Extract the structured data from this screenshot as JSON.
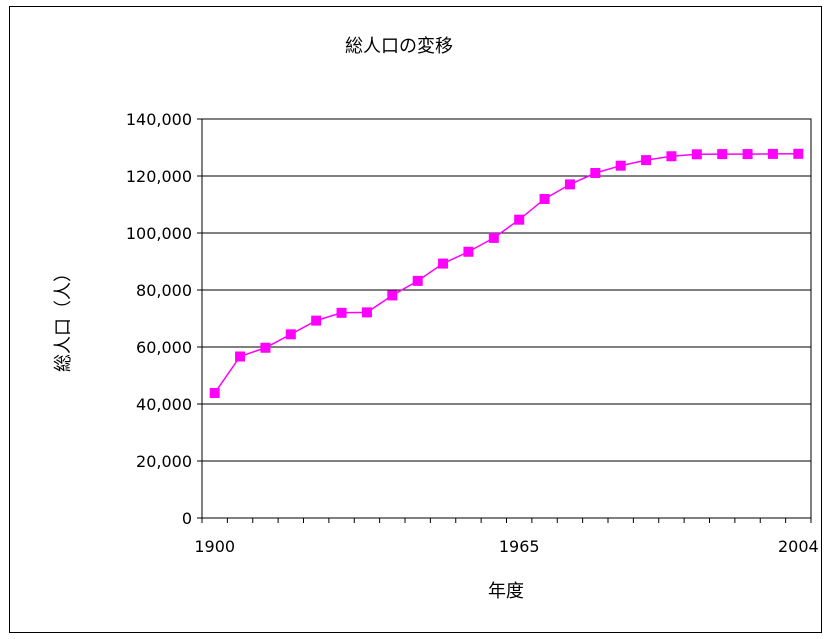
{
  "chart_data": {
    "type": "line",
    "title": "総人口の変移",
    "xlabel": "年度",
    "ylabel": "総人口（人）",
    "ylim": [
      0,
      140000
    ],
    "yticks": [
      "0",
      "20,000",
      "40,000",
      "60,000",
      "80,000",
      "100,000",
      "120,000",
      "140,000"
    ],
    "xtick_labels": [
      "1900",
      "1965",
      "2004"
    ],
    "grid": "horizontal",
    "series": [
      {
        "values": [
          43847,
          56666,
          59737,
          64450,
          69254,
          71998,
          72147,
          78101,
          83200,
          89276,
          93419,
          98275,
          104665,
          111940,
          117060,
          121049,
          123611,
          125570,
          126926,
          127619,
          127687,
          127694,
          127757,
          127787
        ],
        "color": "#ff00ff"
      }
    ]
  }
}
